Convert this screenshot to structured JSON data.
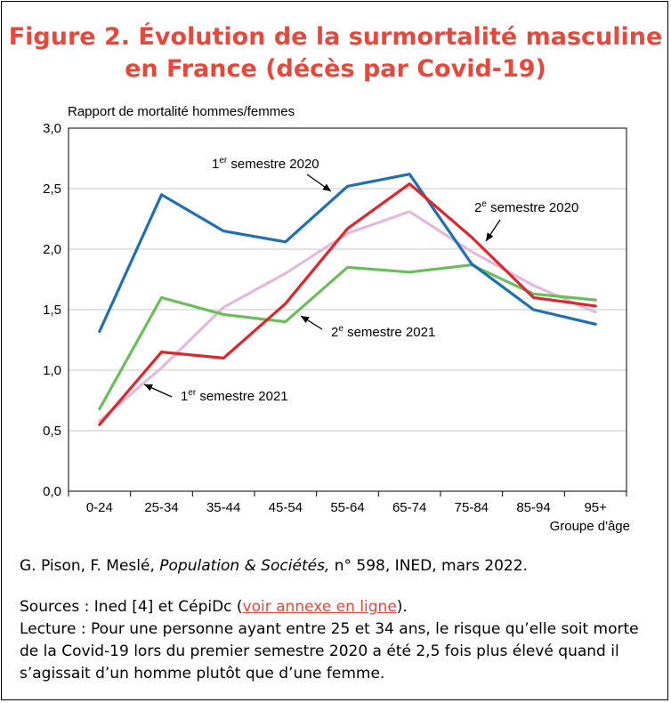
{
  "title_line1": "Figure 2. Évolution de la surmortalité masculine",
  "title_line2": "en France (décès par Covid-19)",
  "citation": {
    "prefix": "G. Pison, F. Meslé, ",
    "journal": "Population & Sociétés,",
    "suffix": " n° 598, INED, mars 2022."
  },
  "sources": {
    "prefix": "Sources : Ined [4] et CépiDc (",
    "link": "voir annexe en ligne",
    "suffix": ")."
  },
  "lecture": "Lecture : Pour une personne ayant entre 25 et 34 ans, le risque qu’elle soit morte de la Covid-19 lors du premier semestre 2020 a été 2,5 fois plus élevé quand il s’agissait d’un homme plutôt que d’une femme.",
  "colors": {
    "s1_2020": "#1f6fb2",
    "s2_2020": "#e0262b",
    "s1_2021": "#e3b9dc",
    "s2_2021": "#6bbf5a",
    "title": "#e8473c"
  },
  "chart_data": {
    "type": "line",
    "ylabel": "Rapport de mortalité hommes/femmes",
    "xlabel": "Groupe d'âge",
    "categories": [
      "0-24",
      "25-34",
      "35-44",
      "45-54",
      "55-64",
      "65-74",
      "75-84",
      "85-94",
      "95+"
    ],
    "ylim": [
      0,
      3
    ],
    "yticks": [
      "0,0",
      "0,5",
      "1,0",
      "1,5",
      "2,0",
      "2,5",
      "3,0"
    ],
    "grid": true,
    "series": [
      {
        "name": "1er semestre 2020",
        "color": "#1f6fb2",
        "values": [
          1.32,
          2.45,
          2.15,
          2.06,
          2.52,
          2.62,
          1.88,
          1.5,
          1.38
        ]
      },
      {
        "name": "2e semestre 2020",
        "color": "#e0262b",
        "values": [
          0.55,
          1.15,
          1.1,
          1.55,
          2.17,
          2.54,
          2.1,
          1.6,
          1.53
        ]
      },
      {
        "name": "1er semestre 2021",
        "color": "#e3b9dc",
        "values": [
          0.58,
          1.02,
          1.52,
          1.8,
          2.13,
          2.31,
          1.98,
          1.7,
          1.48
        ]
      },
      {
        "name": "2e semestre 2021",
        "color": "#6bbf5a",
        "values": [
          0.68,
          1.6,
          1.46,
          1.4,
          1.85,
          1.81,
          1.87,
          1.63,
          1.58
        ]
      }
    ],
    "annotations": [
      {
        "main": "1",
        "sup": "er",
        "rest": " semestre 2020"
      },
      {
        "main": "2",
        "sup": "e",
        "rest": " semestre 2020"
      },
      {
        "main": "2",
        "sup": "e",
        "rest": " semestre 2021"
      },
      {
        "main": "1",
        "sup": "er",
        "rest": " semestre 2021"
      }
    ]
  }
}
